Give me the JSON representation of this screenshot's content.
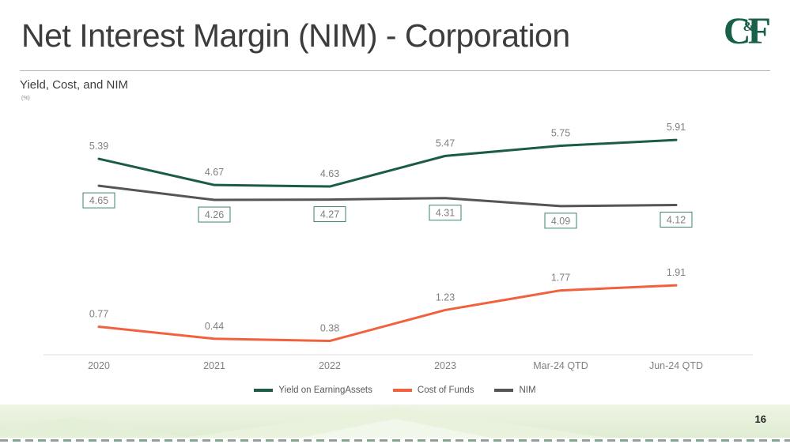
{
  "slide": {
    "title": "Net Interest Margin (NIM) - Corporation",
    "logo": {
      "c": "C",
      "amp": "&",
      "f": "F"
    },
    "page_number": "16",
    "brand_green": "#17604a"
  },
  "chart_data": {
    "type": "line",
    "title": "Yield, Cost, and NIM",
    "unit_label": "(%)",
    "categories": [
      "2020",
      "2021",
      "2022",
      "2023",
      "Mar-24 QTD",
      "Jun-24 QTD"
    ],
    "series": [
      {
        "name": "Yield on EarningAssets",
        "color": "#1a5c45",
        "values": [
          5.39,
          4.67,
          4.63,
          5.47,
          5.75,
          5.91
        ],
        "label_style": "plain"
      },
      {
        "name": "Cost of Funds",
        "color": "#f2613e",
        "values": [
          0.77,
          0.44,
          0.38,
          1.23,
          1.77,
          1.91
        ],
        "label_style": "plain"
      },
      {
        "name": "NIM",
        "color": "#555555",
        "values": [
          4.65,
          4.26,
          4.27,
          4.31,
          4.09,
          4.12
        ],
        "label_style": "boxed"
      }
    ],
    "nim_box_border_color": "#3e8563",
    "label_color": "#7f7f7f",
    "axis_label_color": "#808080",
    "ylim": [
      0,
      6.5
    ],
    "grid": false,
    "legend_position": "bottom"
  }
}
